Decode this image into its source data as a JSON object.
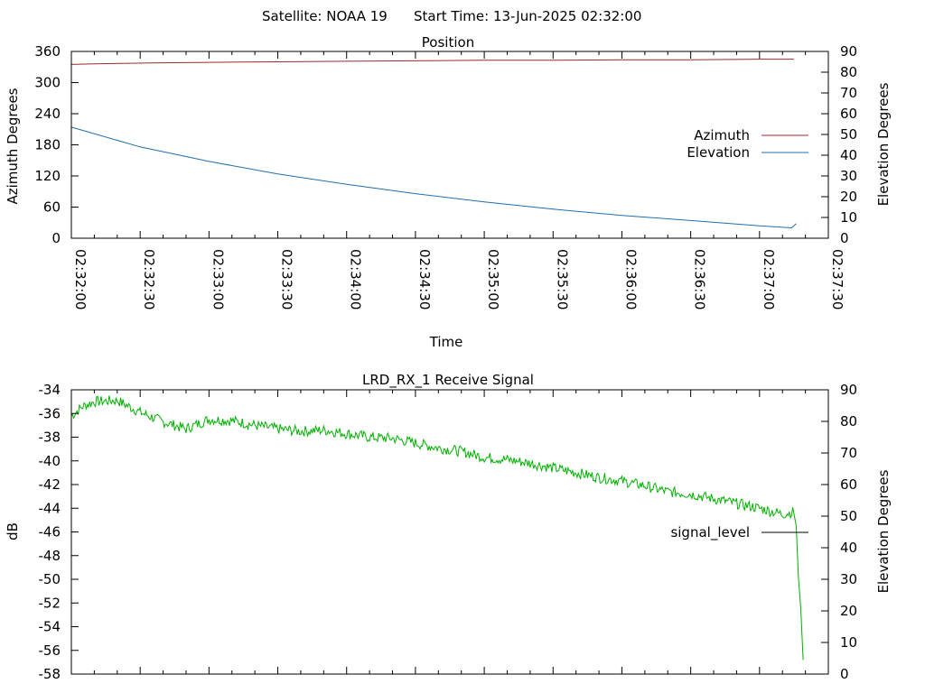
{
  "header": {
    "satellite_label": "Satellite: NOAA 19",
    "start_time_label": "Start Time: 13-Jun-2025 02:32:00"
  },
  "chart_data": [
    {
      "type": "line",
      "title": "Position",
      "xlabel": "Time",
      "ylabel": "Azimuth Degrees",
      "y2label": "Elevation Degrees",
      "x_tick_labels": [
        "02:32:00",
        "02:32:30",
        "02:33:00",
        "02:33:30",
        "02:34:00",
        "02:34:30",
        "02:35:00",
        "02:35:30",
        "02:36:00",
        "02:36:30",
        "02:37:00",
        "02:37:30"
      ],
      "xlim_seconds": [
        0,
        330
      ],
      "ylim": [
        0,
        360
      ],
      "y_ticks": [
        0,
        60,
        120,
        180,
        240,
        300,
        360
      ],
      "y2lim": [
        0,
        90
      ],
      "y2_ticks": [
        0,
        10,
        20,
        30,
        40,
        50,
        60,
        70,
        80,
        90
      ],
      "legend_position": "right",
      "series": [
        {
          "name": "Azimuth",
          "axis": "y",
          "color": "#a0282d",
          "x_seconds": [
            0,
            10,
            35,
            60,
            90,
            120,
            150,
            180,
            210,
            240,
            270,
            300,
            315
          ],
          "values": [
            335,
            336,
            338,
            339,
            340,
            341,
            342,
            343,
            343,
            344,
            344,
            345,
            345
          ]
        },
        {
          "name": "Elevation",
          "axis": "y2",
          "color": "#1f6fae",
          "x_seconds": [
            0,
            30,
            60,
            90,
            120,
            150,
            180,
            210,
            240,
            270,
            300,
            314,
            316
          ],
          "values": [
            53.5,
            44,
            37,
            31,
            26,
            21.5,
            17.5,
            14,
            11,
            8.5,
            6,
            5,
            7
          ]
        }
      ]
    },
    {
      "type": "line",
      "title": "LRD_RX_1 Receive Signal",
      "ylabel": "dB",
      "y2label": "Elevation Degrees",
      "ylim": [
        -58,
        -34
      ],
      "y_ticks": [
        -58,
        -56,
        -54,
        -52,
        -50,
        -48,
        -46,
        -44,
        -42,
        -40,
        -38,
        -36,
        -34
      ],
      "y2lim": [
        0,
        90
      ],
      "y2_ticks": [
        0,
        10,
        20,
        30,
        40,
        50,
        60,
        70,
        80,
        90
      ],
      "xlim_seconds": [
        0,
        330
      ],
      "legend_position": "right",
      "series": [
        {
          "name": "signal_level",
          "axis": "y",
          "color": "#00b000",
          "x_seconds": [
            0,
            5,
            10,
            20,
            30,
            40,
            50,
            60,
            70,
            80,
            90,
            100,
            110,
            120,
            130,
            140,
            150,
            160,
            170,
            180,
            190,
            200,
            210,
            220,
            230,
            240,
            250,
            260,
            270,
            280,
            290,
            300,
            310,
            315,
            316,
            317,
            318,
            319
          ],
          "values": [
            -36.2,
            -35.4,
            -35.0,
            -34.9,
            -35.9,
            -36.7,
            -37.3,
            -36.5,
            -36.6,
            -37.0,
            -37.3,
            -37.5,
            -37.4,
            -37.7,
            -38.0,
            -38.1,
            -38.5,
            -38.9,
            -39.2,
            -39.7,
            -39.9,
            -40.2,
            -40.6,
            -41.0,
            -41.4,
            -41.7,
            -42.1,
            -42.6,
            -42.8,
            -43.2,
            -43.6,
            -44.0,
            -44.5,
            -44.3,
            -45.5,
            -50.0,
            -52.5,
            -56.8
          ]
        }
      ]
    }
  ]
}
